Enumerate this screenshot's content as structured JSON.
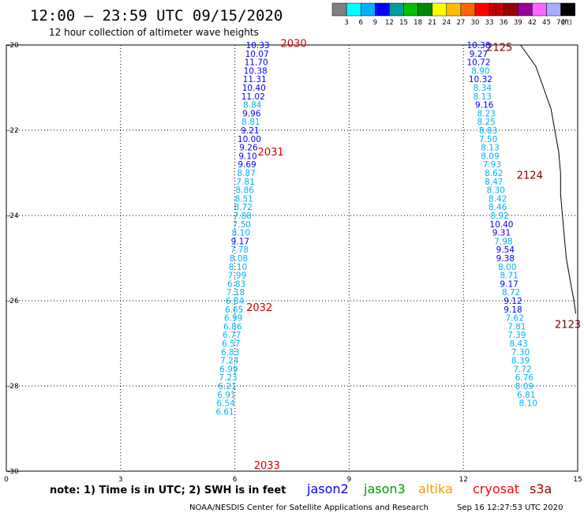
{
  "title": "12:00 – 23:59 UTC 09/15/2020",
  "subtitle": "12 hour collection of altimeter wave heights",
  "note": "note: 1) Time is in UTC; 2) SWH is in feet",
  "credit": "NOAA/NESDIS Center for Satellite Applications and Research",
  "timestamp": "Sep 16 12:27:53 UTC 2020",
  "satellites": [
    {
      "name": "jason2",
      "color": "#0000ff"
    },
    {
      "name": "jason3",
      "color": "#009900"
    },
    {
      "name": "altika",
      "color": "#ff9900"
    },
    {
      "name": "cryosat",
      "color": "#ff0000"
    },
    {
      "name": "s3a",
      "color": "#990000"
    }
  ],
  "colorbar": {
    "labels": [
      "3",
      "6",
      "9",
      "12",
      "15",
      "18",
      "21",
      "24",
      "27",
      "30",
      "33",
      "36",
      "39",
      "42",
      "45",
      "70"
    ],
    "unit": "(ft)",
    "colors": [
      "#808080",
      "#00ffff",
      "#00b0ff",
      "#0000ff",
      "#009d9d",
      "#00c000",
      "#008800",
      "#ffff00",
      "#ffbb00",
      "#ff6600",
      "#ff0000",
      "#c00000",
      "#990000",
      "#990099",
      "#ff66ff",
      "#aaaaff",
      "#000000"
    ]
  },
  "chart_data": {
    "type": "scatter",
    "xlim": [
      0,
      15
    ],
    "ylim": [
      -30,
      -20
    ],
    "x_ticks": [
      "0",
      "3",
      "6",
      "9",
      "12",
      "15"
    ],
    "y_ticks": [
      "-20",
      "-22",
      "-24",
      "-26",
      "-28",
      "-30"
    ],
    "grid": true,
    "pass_labels": [
      {
        "text": "2030",
        "x": 7.2,
        "y": -19.95,
        "style": "red"
      },
      {
        "text": "2031",
        "x": 6.6,
        "y": -22.5,
        "style": "red"
      },
      {
        "text": "2032",
        "x": 6.3,
        "y": -26.15,
        "style": "red"
      },
      {
        "text": "2033",
        "x": 6.5,
        "y": -29.85,
        "style": "red"
      },
      {
        "text": "2125",
        "x": 12.6,
        "y": -20.05,
        "style": "dark"
      },
      {
        "text": "2124",
        "x": 13.4,
        "y": -23.05,
        "style": "dark"
      },
      {
        "text": "2123",
        "x": 14.4,
        "y": -26.55,
        "style": "dark"
      }
    ],
    "series": [
      {
        "values": [
          {
            "x": 6.6,
            "y": -20.0,
            "v": "10.33",
            "c": "#0000ff"
          },
          {
            "x": 6.58,
            "y": -20.2,
            "v": "10.07",
            "c": "#0000ff"
          },
          {
            "x": 6.56,
            "y": -20.4,
            "v": "11.70",
            "c": "#0000ff"
          },
          {
            "x": 6.54,
            "y": -20.6,
            "v": "10.38",
            "c": "#0000ff"
          },
          {
            "x": 6.52,
            "y": -20.8,
            "v": "11.31",
            "c": "#0000ff"
          },
          {
            "x": 6.5,
            "y": -21.0,
            "v": "10.40",
            "c": "#0000ff"
          },
          {
            "x": 6.48,
            "y": -21.2,
            "v": "11.02",
            "c": "#0000ff"
          },
          {
            "x": 6.46,
            "y": -21.4,
            "v": "8.84",
            "c": "#00b0ff"
          },
          {
            "x": 6.44,
            "y": -21.6,
            "v": "9.96",
            "c": "#0000ff"
          },
          {
            "x": 6.42,
            "y": -21.8,
            "v": "8.81",
            "c": "#00b0ff"
          },
          {
            "x": 6.4,
            "y": -22.0,
            "v": "9.21",
            "c": "#0000ff"
          },
          {
            "x": 6.38,
            "y": -22.2,
            "v": "10.00",
            "c": "#0000ff"
          },
          {
            "x": 6.36,
            "y": -22.4,
            "v": "9.26",
            "c": "#0000ff"
          },
          {
            "x": 6.34,
            "y": -22.6,
            "v": "9.10",
            "c": "#0000ff"
          },
          {
            "x": 6.32,
            "y": -22.8,
            "v": "9.69",
            "c": "#0000ff"
          },
          {
            "x": 6.3,
            "y": -23.0,
            "v": "8.87",
            "c": "#00b0ff"
          },
          {
            "x": 6.28,
            "y": -23.2,
            "v": "7.81",
            "c": "#00b0ff"
          },
          {
            "x": 6.26,
            "y": -23.4,
            "v": "8.86",
            "c": "#00b0ff"
          },
          {
            "x": 6.24,
            "y": -23.6,
            "v": "8.51",
            "c": "#00b0ff"
          },
          {
            "x": 6.22,
            "y": -23.8,
            "v": "8.72",
            "c": "#00b0ff"
          },
          {
            "x": 6.2,
            "y": -24.0,
            "v": "7.88",
            "c": "#00b0ff"
          },
          {
            "x": 6.18,
            "y": -24.2,
            "v": "7.50",
            "c": "#00b0ff"
          },
          {
            "x": 6.16,
            "y": -24.4,
            "v": "8.10",
            "c": "#00b0ff"
          },
          {
            "x": 6.14,
            "y": -24.6,
            "v": "9.17",
            "c": "#0000ff"
          },
          {
            "x": 6.12,
            "y": -24.8,
            "v": "7.78",
            "c": "#00b0ff"
          },
          {
            "x": 6.1,
            "y": -25.0,
            "v": "8.08",
            "c": "#00b0ff"
          },
          {
            "x": 6.08,
            "y": -25.2,
            "v": "8.10",
            "c": "#00b0ff"
          },
          {
            "x": 6.06,
            "y": -25.4,
            "v": "7.99",
            "c": "#00b0ff"
          },
          {
            "x": 6.04,
            "y": -25.6,
            "v": "6.83",
            "c": "#00b0ff"
          },
          {
            "x": 6.02,
            "y": -25.8,
            "v": "7.18",
            "c": "#00b0ff"
          },
          {
            "x": 6.0,
            "y": -26.0,
            "v": "6.84",
            "c": "#00b0ff"
          },
          {
            "x": 5.98,
            "y": -26.2,
            "v": "6.65",
            "c": "#00b0ff"
          },
          {
            "x": 5.96,
            "y": -26.4,
            "v": "6.99",
            "c": "#00b0ff"
          },
          {
            "x": 5.94,
            "y": -26.6,
            "v": "6.86",
            "c": "#00b0ff"
          },
          {
            "x": 5.92,
            "y": -26.8,
            "v": "6.77",
            "c": "#00b0ff"
          },
          {
            "x": 5.9,
            "y": -27.0,
            "v": "6.57",
            "c": "#00b0ff"
          },
          {
            "x": 5.88,
            "y": -27.2,
            "v": "6.83",
            "c": "#00b0ff"
          },
          {
            "x": 5.86,
            "y": -27.4,
            "v": "7.24",
            "c": "#00b0ff"
          },
          {
            "x": 5.84,
            "y": -27.6,
            "v": "6.99",
            "c": "#00b0ff"
          },
          {
            "x": 5.82,
            "y": -27.8,
            "v": "7.23",
            "c": "#00b0ff"
          },
          {
            "x": 5.8,
            "y": -28.0,
            "v": "6.21",
            "c": "#00b0ff"
          },
          {
            "x": 5.78,
            "y": -28.2,
            "v": "6.91",
            "c": "#00b0ff"
          },
          {
            "x": 5.76,
            "y": -28.4,
            "v": "6.54",
            "c": "#00b0ff"
          },
          {
            "x": 5.74,
            "y": -28.6,
            "v": "6.61",
            "c": "#00b0ff"
          }
        ]
      },
      {
        "values": [
          {
            "x": 12.4,
            "y": -20.0,
            "v": "10.38",
            "c": "#0000ff"
          },
          {
            "x": 12.4,
            "y": -20.2,
            "v": "9.27",
            "c": "#0000ff"
          },
          {
            "x": 12.4,
            "y": -20.4,
            "v": "10.72",
            "c": "#0000ff"
          },
          {
            "x": 12.45,
            "y": -20.6,
            "v": "8.90",
            "c": "#00b0ff"
          },
          {
            "x": 12.45,
            "y": -20.8,
            "v": "10.32",
            "c": "#0000ff"
          },
          {
            "x": 12.5,
            "y": -21.0,
            "v": "8.34",
            "c": "#00b0ff"
          },
          {
            "x": 12.5,
            "y": -21.2,
            "v": "8.13",
            "c": "#00b0ff"
          },
          {
            "x": 12.55,
            "y": -21.4,
            "v": "9.16",
            "c": "#0000ff"
          },
          {
            "x": 12.6,
            "y": -21.6,
            "v": "8.23",
            "c": "#00b0ff"
          },
          {
            "x": 12.6,
            "y": -21.8,
            "v": "8.25",
            "c": "#00b0ff"
          },
          {
            "x": 12.65,
            "y": -22.0,
            "v": "8.83",
            "c": "#00b0ff"
          },
          {
            "x": 12.65,
            "y": -22.2,
            "v": "7.50",
            "c": "#00b0ff"
          },
          {
            "x": 12.7,
            "y": -22.4,
            "v": "8.13",
            "c": "#00b0ff"
          },
          {
            "x": 12.7,
            "y": -22.6,
            "v": "8.09",
            "c": "#00b0ff"
          },
          {
            "x": 12.75,
            "y": -22.8,
            "v": "7.93",
            "c": "#00b0ff"
          },
          {
            "x": 12.8,
            "y": -23.0,
            "v": "8.62",
            "c": "#00b0ff"
          },
          {
            "x": 12.8,
            "y": -23.2,
            "v": "8.47",
            "c": "#00b0ff"
          },
          {
            "x": 12.85,
            "y": -23.4,
            "v": "8.30",
            "c": "#00b0ff"
          },
          {
            "x": 12.9,
            "y": -23.6,
            "v": "8.42",
            "c": "#00b0ff"
          },
          {
            "x": 12.9,
            "y": -23.8,
            "v": "8.46",
            "c": "#00b0ff"
          },
          {
            "x": 12.95,
            "y": -24.0,
            "v": "8.92",
            "c": "#00b0ff"
          },
          {
            "x": 13.0,
            "y": -24.2,
            "v": "10.40",
            "c": "#0000ff"
          },
          {
            "x": 13.0,
            "y": -24.4,
            "v": "9.31",
            "c": "#0000ff"
          },
          {
            "x": 13.05,
            "y": -24.6,
            "v": "7.98",
            "c": "#00b0ff"
          },
          {
            "x": 13.1,
            "y": -24.8,
            "v": "9.54",
            "c": "#0000ff"
          },
          {
            "x": 13.1,
            "y": -25.0,
            "v": "9.38",
            "c": "#0000ff"
          },
          {
            "x": 13.15,
            "y": -25.2,
            "v": "8.00",
            "c": "#00b0ff"
          },
          {
            "x": 13.2,
            "y": -25.4,
            "v": "8.71",
            "c": "#00b0ff"
          },
          {
            "x": 13.2,
            "y": -25.6,
            "v": "9.17",
            "c": "#0000ff"
          },
          {
            "x": 13.25,
            "y": -25.8,
            "v": "8.72",
            "c": "#00b0ff"
          },
          {
            "x": 13.3,
            "y": -26.0,
            "v": "9.12",
            "c": "#0000ff"
          },
          {
            "x": 13.3,
            "y": -26.2,
            "v": "9.18",
            "c": "#0000ff"
          },
          {
            "x": 13.35,
            "y": -26.4,
            "v": "7.62",
            "c": "#00b0ff"
          },
          {
            "x": 13.4,
            "y": -26.6,
            "v": "7.81",
            "c": "#00b0ff"
          },
          {
            "x": 13.4,
            "y": -26.8,
            "v": "7.39",
            "c": "#00b0ff"
          },
          {
            "x": 13.45,
            "y": -27.0,
            "v": "8.43",
            "c": "#00b0ff"
          },
          {
            "x": 13.5,
            "y": -27.2,
            "v": "7.30",
            "c": "#00b0ff"
          },
          {
            "x": 13.5,
            "y": -27.4,
            "v": "8.39",
            "c": "#00b0ff"
          },
          {
            "x": 13.55,
            "y": -27.6,
            "v": "7.72",
            "c": "#00b0ff"
          },
          {
            "x": 13.6,
            "y": -27.8,
            "v": "6.76",
            "c": "#00b0ff"
          },
          {
            "x": 13.6,
            "y": -28.0,
            "v": "8.09",
            "c": "#00b0ff"
          },
          {
            "x": 13.65,
            "y": -28.2,
            "v": "6.81",
            "c": "#00b0ff"
          },
          {
            "x": 13.7,
            "y": -28.4,
            "v": "8.10",
            "c": "#00b0ff"
          }
        ]
      }
    ],
    "coastline": [
      [
        13.5,
        -20.0
      ],
      [
        13.9,
        -20.5
      ],
      [
        14.1,
        -21.0
      ],
      [
        14.3,
        -21.5
      ],
      [
        14.4,
        -22.0
      ],
      [
        14.5,
        -22.5
      ],
      [
        14.55,
        -23.0
      ],
      [
        14.55,
        -23.5
      ],
      [
        14.6,
        -24.0
      ],
      [
        14.65,
        -24.5
      ],
      [
        14.7,
        -25.0
      ],
      [
        14.8,
        -25.5
      ],
      [
        14.9,
        -26.0
      ],
      [
        14.95,
        -26.3
      ]
    ]
  }
}
